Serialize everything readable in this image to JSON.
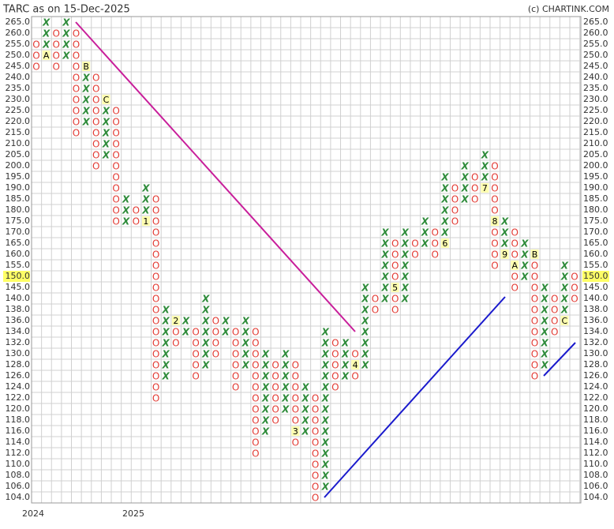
{
  "chart_data": {
    "type": "pointfigure",
    "title": "TARC as on 15-Dec-2025",
    "credit": "(c) CHARTINK.COM",
    "x_labels": [
      "2024",
      "2025"
    ],
    "x_color": "#2e8b3a",
    "o_color": "#e23a33",
    "last_price": {
      "value": 150,
      "label": "150.0"
    },
    "price_levels": [
      {
        "value": 265,
        "label": "265.0"
      },
      {
        "value": 260,
        "label": "260.0"
      },
      {
        "value": 255,
        "label": "255.0"
      },
      {
        "value": 250,
        "label": "250.0"
      },
      {
        "value": 245,
        "label": "245.0"
      },
      {
        "value": 240,
        "label": "240.0"
      },
      {
        "value": 235,
        "label": "235.0"
      },
      {
        "value": 230,
        "label": "230.0"
      },
      {
        "value": 225,
        "label": "225.0"
      },
      {
        "value": 220,
        "label": "220.0"
      },
      {
        "value": 215,
        "label": "215.0"
      },
      {
        "value": 210,
        "label": "210.0"
      },
      {
        "value": 205,
        "label": "205.0"
      },
      {
        "value": 200,
        "label": "200.0"
      },
      {
        "value": 195,
        "label": "195.0"
      },
      {
        "value": 190,
        "label": "190.0"
      },
      {
        "value": 185,
        "label": "185.0"
      },
      {
        "value": 180,
        "label": "180.0"
      },
      {
        "value": 175,
        "label": "175.0"
      },
      {
        "value": 170,
        "label": "170.0"
      },
      {
        "value": 165,
        "label": "165.0"
      },
      {
        "value": 160,
        "label": "160.0"
      },
      {
        "value": 155,
        "label": "155.0"
      },
      {
        "value": 150,
        "label": "150.0"
      },
      {
        "value": 145,
        "label": "145.0"
      },
      {
        "value": 140,
        "label": "140.0"
      },
      {
        "value": 138,
        "label": "138.0"
      },
      {
        "value": 136,
        "label": "136.0"
      },
      {
        "value": 134,
        "label": "134.0"
      },
      {
        "value": 132,
        "label": "132.0"
      },
      {
        "value": 130,
        "label": "130.0"
      },
      {
        "value": 128,
        "label": "128.0"
      },
      {
        "value": 126,
        "label": "126.0"
      },
      {
        "value": 124,
        "label": "124.0"
      },
      {
        "value": 122,
        "label": "122.0"
      },
      {
        "value": 120,
        "label": "120.0"
      },
      {
        "value": 118,
        "label": "118.0"
      },
      {
        "value": 116,
        "label": "116.0"
      },
      {
        "value": 114,
        "label": "114.0"
      },
      {
        "value": 112,
        "label": "112.0"
      },
      {
        "value": 110,
        "label": "110.0"
      },
      {
        "value": 108,
        "label": "108.0"
      },
      {
        "value": 106,
        "label": "106.0"
      },
      {
        "value": 104,
        "label": "104.0"
      }
    ],
    "columns": [
      {
        "type": "O",
        "high": 255,
        "low": 245
      },
      {
        "type": "X",
        "high": 265,
        "low": 250,
        "markers": [
          {
            "value": 250,
            "label": "A"
          }
        ]
      },
      {
        "type": "O",
        "high": 260,
        "low": 245
      },
      {
        "type": "X",
        "high": 265,
        "low": 250
      },
      {
        "type": "O",
        "high": 260,
        "low": 215
      },
      {
        "type": "X",
        "high": 245,
        "low": 220,
        "markers": [
          {
            "value": 245,
            "label": "B"
          }
        ]
      },
      {
        "type": "O",
        "high": 240,
        "low": 200
      },
      {
        "type": "X",
        "high": 230,
        "low": 205,
        "markers": [
          {
            "value": 230,
            "label": "C"
          }
        ]
      },
      {
        "type": "O",
        "high": 225,
        "low": 175
      },
      {
        "type": "X",
        "high": 185,
        "low": 175
      },
      {
        "type": "O",
        "high": 180,
        "low": 175
      },
      {
        "type": "X",
        "high": 190,
        "low": 175,
        "markers": [
          {
            "value": 175,
            "label": "1"
          }
        ]
      },
      {
        "type": "O",
        "high": 185,
        "low": 122
      },
      {
        "type": "X",
        "high": 138,
        "low": 126
      },
      {
        "type": "O",
        "high": 136,
        "low": 132,
        "markers": [
          {
            "value": 136,
            "label": "2"
          }
        ]
      },
      {
        "type": "X",
        "high": 136,
        "low": 134
      },
      {
        "type": "O",
        "high": 134,
        "low": 126
      },
      {
        "type": "X",
        "high": 140,
        "low": 128
      },
      {
        "type": "O",
        "high": 136,
        "low": 130
      },
      {
        "type": "X",
        "high": 136,
        "low": 134
      },
      {
        "type": "O",
        "high": 134,
        "low": 124
      },
      {
        "type": "X",
        "high": 136,
        "low": 128
      },
      {
        "type": "O",
        "high": 134,
        "low": 112
      },
      {
        "type": "X",
        "high": 130,
        "low": 116
      },
      {
        "type": "O",
        "high": 128,
        "low": 118
      },
      {
        "type": "X",
        "high": 130,
        "low": 120
      },
      {
        "type": "O",
        "high": 128,
        "low": 114,
        "markers": [
          {
            "value": 116,
            "label": "3"
          }
        ]
      },
      {
        "type": "X",
        "high": 124,
        "low": 116
      },
      {
        "type": "O",
        "high": 122,
        "low": 104
      },
      {
        "type": "X",
        "high": 134,
        "low": 106
      },
      {
        "type": "O",
        "high": 132,
        "low": 124
      },
      {
        "type": "X",
        "high": 132,
        "low": 126
      },
      {
        "type": "O",
        "high": 130,
        "low": 126,
        "markers": [
          {
            "value": 128,
            "label": "4"
          }
        ]
      },
      {
        "type": "X",
        "high": 145,
        "low": 128
      },
      {
        "type": "O",
        "high": 140,
        "low": 138
      },
      {
        "type": "X",
        "high": 170,
        "low": 140
      },
      {
        "type": "O",
        "high": 165,
        "low": 138,
        "markers": [
          {
            "value": 145,
            "label": "5"
          }
        ]
      },
      {
        "type": "X",
        "high": 170,
        "low": 140
      },
      {
        "type": "O",
        "high": 165,
        "low": 160
      },
      {
        "type": "X",
        "high": 175,
        "low": 165
      },
      {
        "type": "O",
        "high": 170,
        "low": 160
      },
      {
        "type": "X",
        "high": 195,
        "low": 165,
        "markers": [
          {
            "value": 165,
            "label": "6"
          }
        ]
      },
      {
        "type": "O",
        "high": 190,
        "low": 175
      },
      {
        "type": "X",
        "high": 200,
        "low": 185
      },
      {
        "type": "O",
        "high": 195,
        "low": 185
      },
      {
        "type": "X",
        "high": 205,
        "low": 190,
        "markers": [
          {
            "value": 190,
            "label": "7"
          }
        ]
      },
      {
        "type": "O",
        "high": 200,
        "low": 155,
        "markers": [
          {
            "value": 175,
            "label": "8"
          }
        ]
      },
      {
        "type": "X",
        "high": 175,
        "low": 160,
        "markers": [
          {
            "value": 160,
            "label": "9"
          }
        ]
      },
      {
        "type": "O",
        "high": 170,
        "low": 145,
        "markers": [
          {
            "value": 155,
            "label": "A"
          }
        ]
      },
      {
        "type": "X",
        "high": 165,
        "low": 150
      },
      {
        "type": "O",
        "high": 160,
        "low": 126,
        "markers": [
          {
            "value": 160,
            "label": "B"
          }
        ]
      },
      {
        "type": "X",
        "high": 145,
        "low": 128
      },
      {
        "type": "O",
        "high": 140,
        "low": 134
      },
      {
        "type": "X",
        "high": 155,
        "low": 136,
        "markers": [
          {
            "value": 136,
            "label": "C"
          }
        ]
      },
      {
        "type": "O",
        "high": 150,
        "low": 140
      }
    ]
  }
}
